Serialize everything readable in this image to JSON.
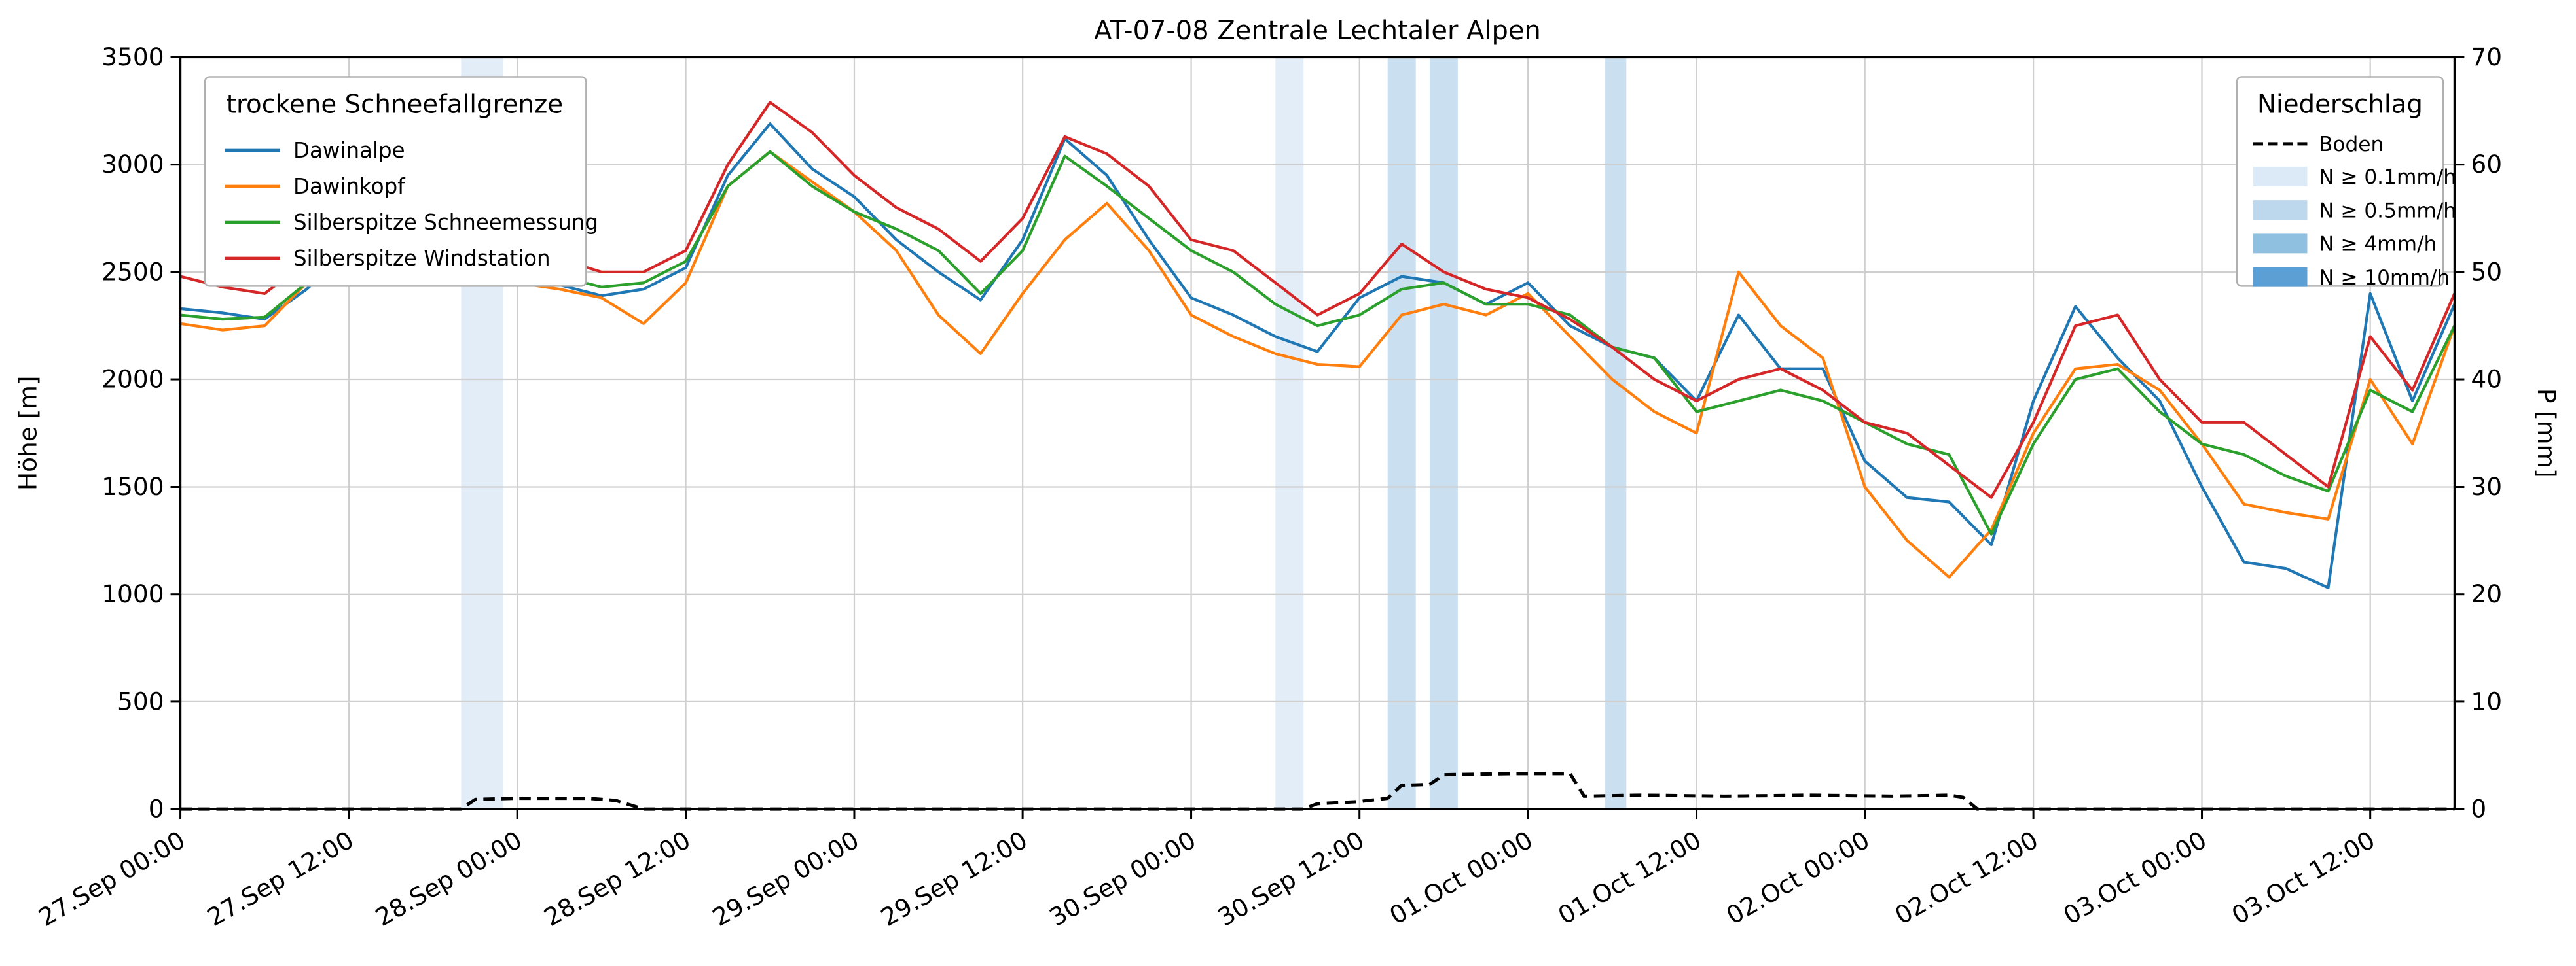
{
  "chart_data": {
    "type": "line",
    "title": "AT-07-08 Zentrale Lechtaler Alpen",
    "ylabel_left": "Höhe [m]",
    "ylabel_right": "P [mm]",
    "ylim_left": [
      0,
      3500
    ],
    "ylim_right": [
      0,
      70
    ],
    "yticks_left": [
      0,
      500,
      1000,
      1500,
      2000,
      2500,
      3000,
      3500
    ],
    "yticks_right": [
      0,
      10,
      20,
      30,
      40,
      50,
      60,
      70
    ],
    "grid": true,
    "x_max_h": 162,
    "x_ticks": [
      {
        "h": 0,
        "label": "27.Sep 00:00"
      },
      {
        "h": 12,
        "label": "27.Sep 12:00"
      },
      {
        "h": 24,
        "label": "28.Sep 00:00"
      },
      {
        "h": 36,
        "label": "28.Sep 12:00"
      },
      {
        "h": 48,
        "label": "29.Sep 00:00"
      },
      {
        "h": 60,
        "label": "29.Sep 12:00"
      },
      {
        "h": 72,
        "label": "30.Sep 00:00"
      },
      {
        "h": 84,
        "label": "30.Sep 12:00"
      },
      {
        "h": 96,
        "label": "01.Oct 00:00"
      },
      {
        "h": 108,
        "label": "01.Oct 12:00"
      },
      {
        "h": 120,
        "label": "02.Oct 00:00"
      },
      {
        "h": 132,
        "label": "02.Oct 12:00"
      },
      {
        "h": 144,
        "label": "03.Oct 00:00"
      },
      {
        "h": 156,
        "label": "03.Oct 12:00"
      }
    ],
    "series": [
      {
        "name": "Dawinalpe",
        "color": "#1f77b4",
        "x0_h": 0,
        "x_step_h": 3,
        "values": [
          2330,
          2310,
          2280,
          2420,
          2600,
          2630,
          2570,
          2500,
          2470,
          2440,
          2390,
          2420,
          2520,
          2950,
          3190,
          2980,
          2850,
          2650,
          2500,
          2370,
          2650,
          3120,
          2950,
          2650,
          2380,
          2300,
          2200,
          2130,
          2380,
          2480,
          2450,
          2350,
          2450,
          2250,
          2150,
          2100,
          1900,
          2300,
          2050,
          2050,
          1620,
          1450,
          1430,
          1230,
          1900,
          2340,
          2100,
          1900,
          1500,
          1150,
          1120,
          1030,
          2400,
          1900,
          2350
        ]
      },
      {
        "name": "Dawinkopf",
        "color": "#ff7f0e",
        "x0_h": 0,
        "x_step_h": 3,
        "values": [
          2260,
          2230,
          2250,
          2450,
          2950,
          3080,
          2700,
          2500,
          2450,
          2420,
          2380,
          2260,
          2450,
          2900,
          3060,
          2920,
          2780,
          2600,
          2300,
          2120,
          2400,
          2650,
          2820,
          2600,
          2300,
          2200,
          2120,
          2070,
          2060,
          2300,
          2350,
          2300,
          2400,
          2200,
          2000,
          1850,
          1750,
          2500,
          2250,
          2100,
          1500,
          1250,
          1080,
          1300,
          1750,
          2050,
          2070,
          1950,
          1700,
          1420,
          1380,
          1350,
          2000,
          1700,
          2250
        ]
      },
      {
        "name": "Silberspitze Schneemessung",
        "color": "#2ca02c",
        "x0_h": 0,
        "x_step_h": 3,
        "values": [
          2300,
          2280,
          2290,
          2450,
          2550,
          2560,
          2540,
          2500,
          2520,
          2480,
          2430,
          2450,
          2550,
          2900,
          3060,
          2900,
          2780,
          2700,
          2600,
          2400,
          2600,
          3040,
          2900,
          2750,
          2600,
          2500,
          2350,
          2250,
          2300,
          2420,
          2450,
          2350,
          2350,
          2300,
          2150,
          2100,
          1850,
          1900,
          1950,
          1900,
          1800,
          1700,
          1650,
          1280,
          1700,
          2000,
          2050,
          1850,
          1700,
          1650,
          1550,
          1480,
          1950,
          1850,
          2250
        ]
      },
      {
        "name": "Silberspitze Windstation",
        "color": "#d62728",
        "x0_h": 0,
        "x_step_h": 3,
        "values": [
          2480,
          2430,
          2400,
          2550,
          2650,
          2620,
          2600,
          2570,
          2580,
          2560,
          2500,
          2500,
          2600,
          3000,
          3290,
          3150,
          2950,
          2800,
          2700,
          2550,
          2750,
          3130,
          3050,
          2900,
          2650,
          2600,
          2450,
          2300,
          2400,
          2630,
          2500,
          2420,
          2380,
          2280,
          2150,
          2000,
          1900,
          2000,
          2050,
          1950,
          1800,
          1750,
          1600,
          1450,
          1800,
          2250,
          2300,
          2000,
          1800,
          1800,
          1650,
          1500,
          2200,
          1950,
          2400
        ]
      }
    ],
    "boden": {
      "name": "Boden",
      "style": "dashed-black",
      "axis": "right",
      "points": [
        [
          0,
          0
        ],
        [
          20,
          0
        ],
        [
          21,
          0.9
        ],
        [
          24,
          1.0
        ],
        [
          29,
          1.0
        ],
        [
          31,
          0.8
        ],
        [
          33,
          0
        ],
        [
          80,
          0
        ],
        [
          81,
          0.5
        ],
        [
          84,
          0.7
        ],
        [
          86,
          1.0
        ],
        [
          87,
          2.2
        ],
        [
          89,
          2.3
        ],
        [
          90,
          3.2
        ],
        [
          95,
          3.3
        ],
        [
          99,
          3.3
        ],
        [
          100,
          1.2
        ],
        [
          104,
          1.3
        ],
        [
          110,
          1.2
        ],
        [
          116,
          1.3
        ],
        [
          122,
          1.2
        ],
        [
          126,
          1.3
        ],
        [
          127,
          1.1
        ],
        [
          128,
          0
        ],
        [
          162,
          0
        ]
      ]
    },
    "precip_bands": [
      {
        "start_h": 20,
        "end_h": 23,
        "level": "0.1"
      },
      {
        "start_h": 78,
        "end_h": 80,
        "level": "0.1"
      },
      {
        "start_h": 86,
        "end_h": 88,
        "level": "0.5"
      },
      {
        "start_h": 89,
        "end_h": 91,
        "level": "0.5"
      },
      {
        "start_h": 101.5,
        "end_h": 103,
        "level": "0.5"
      }
    ],
    "band_colors": {
      "0.1": "#dce9f6",
      "0.5": "#bdd7ec",
      "4": "#8fc0e0",
      "10": "#5b9fd4"
    },
    "legend_snowline": {
      "title": "trockene Schneefallgrenze",
      "items": [
        {
          "label": "Dawinalpe",
          "color": "#1f77b4"
        },
        {
          "label": "Dawinkopf",
          "color": "#ff7f0e"
        },
        {
          "label": "Silberspitze Schneemessung",
          "color": "#2ca02c"
        },
        {
          "label": "Silberspitze Windstation",
          "color": "#d62728"
        }
      ]
    },
    "legend_precip": {
      "title": "Niederschlag",
      "boden_label": "Boden",
      "levels": [
        {
          "label": "N ≥ 0.1mm/h",
          "color": "#dce9f6"
        },
        {
          "label": "N ≥ 0.5mm/h",
          "color": "#bdd7ec"
        },
        {
          "label": "N ≥ 4mm/h",
          "color": "#8fc0e0"
        },
        {
          "label": "N ≥ 10mm/h",
          "color": "#5b9fd4"
        }
      ]
    }
  }
}
